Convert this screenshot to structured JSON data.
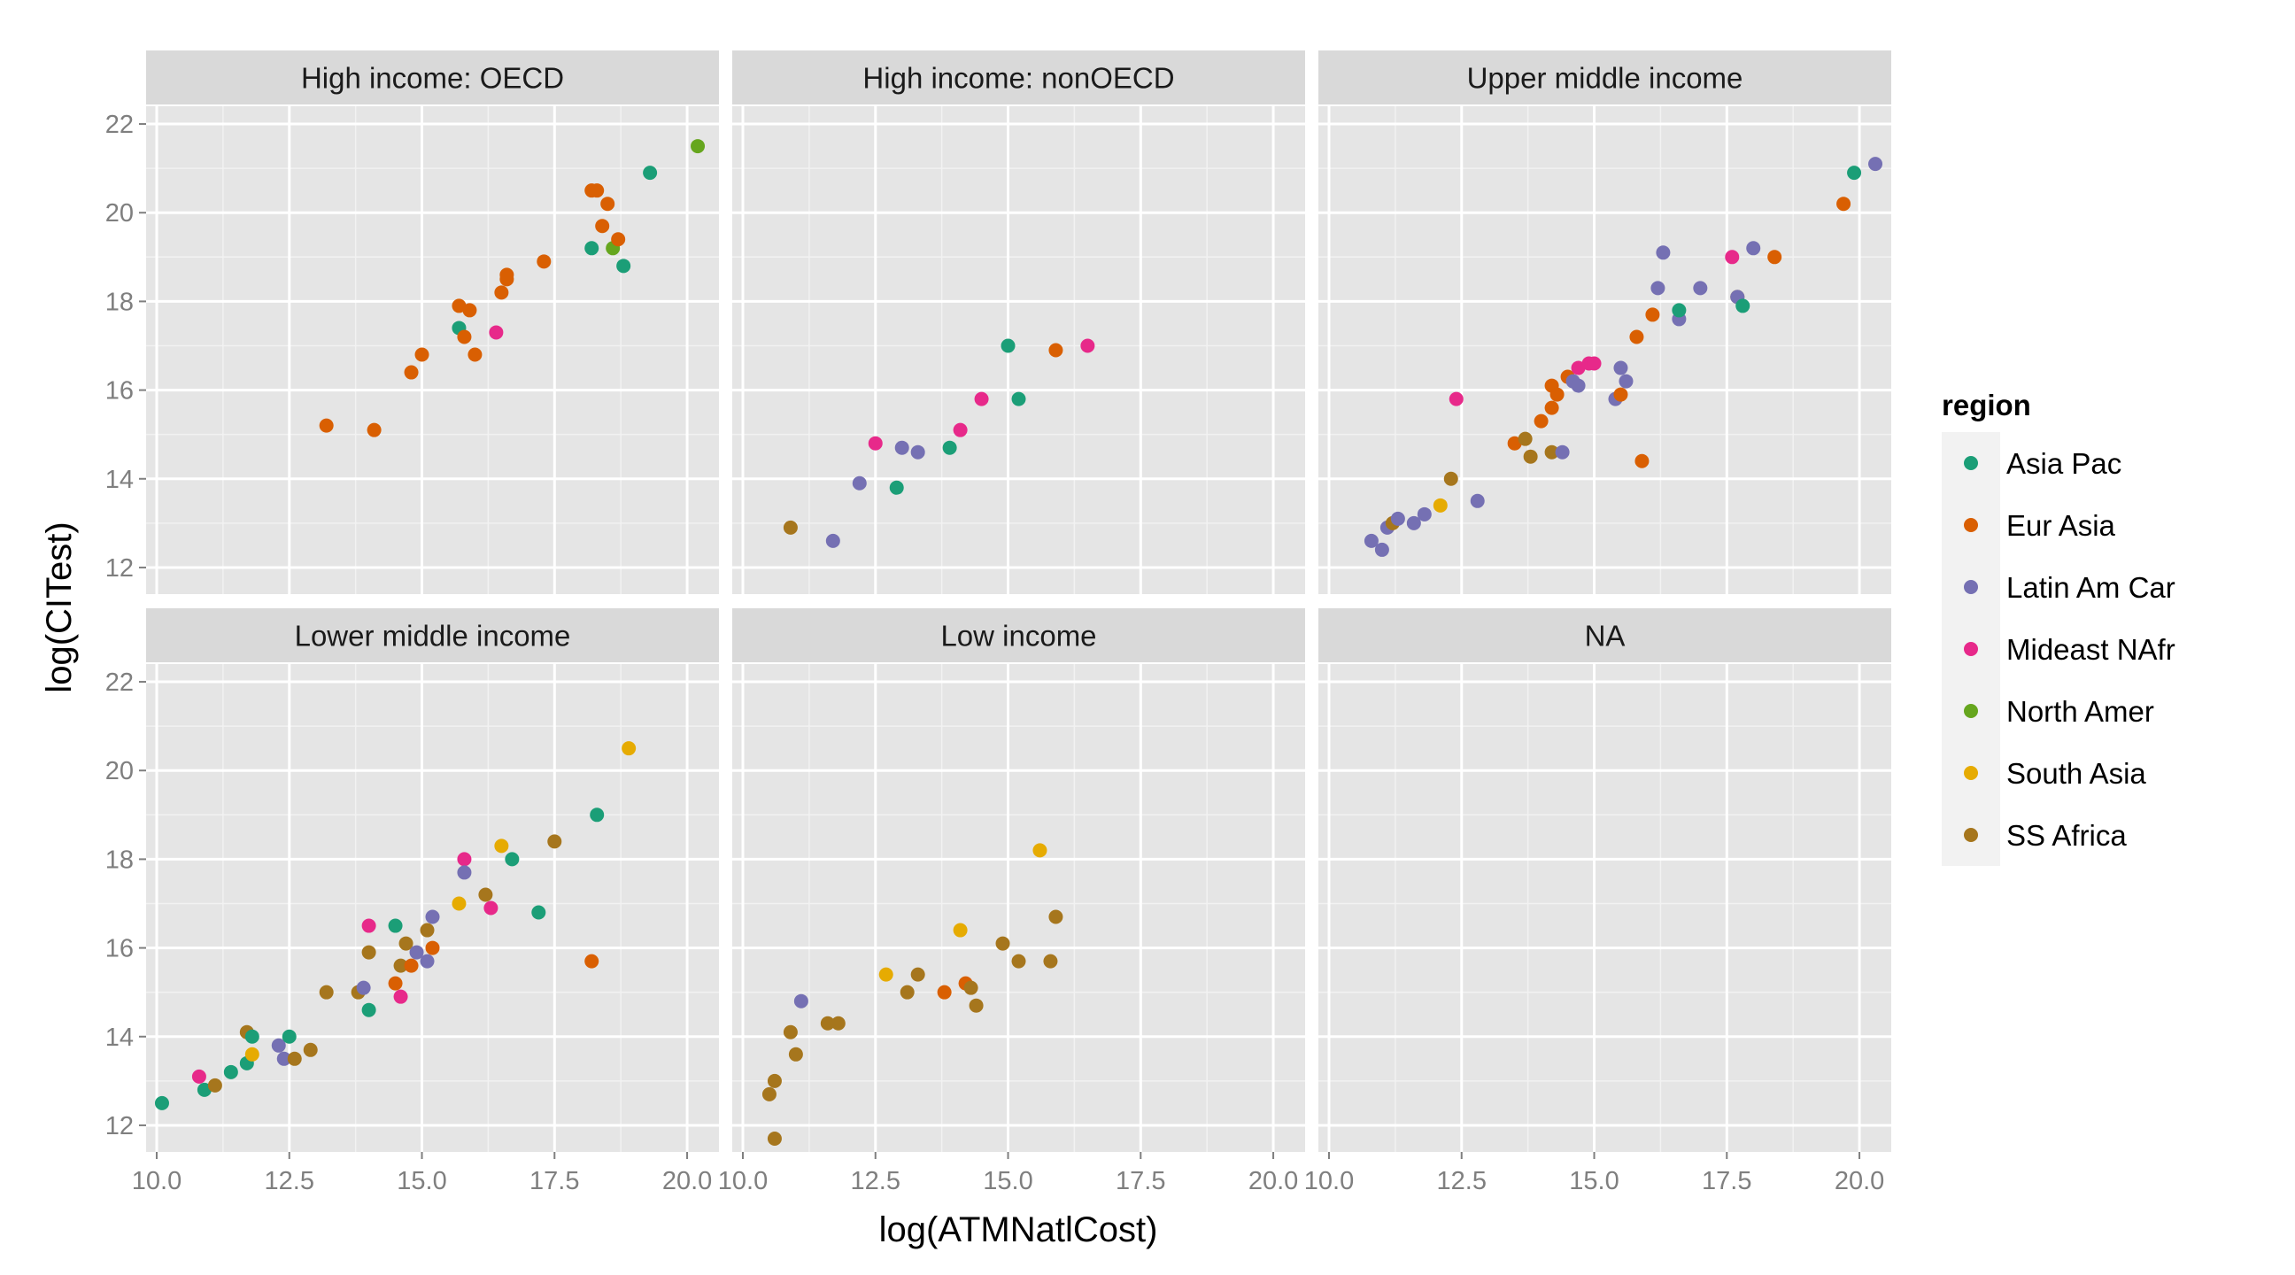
{
  "chart_data": {
    "type": "scatter",
    "xlabel": "log(ATMNatlCost)",
    "ylabel": "log(CITest)",
    "xlim": [
      9.8,
      20.6
    ],
    "ylim": [
      11.4,
      22.4
    ],
    "x_ticks": [
      10,
      12.5,
      15,
      17.5,
      20
    ],
    "x_tick_labels": [
      "10.0",
      "12.5",
      "15.0",
      "17.5",
      "20.0"
    ],
    "y_ticks": [
      12,
      14,
      16,
      18,
      20,
      22
    ],
    "y_tick_labels": [
      "12",
      "14",
      "16",
      "18",
      "20",
      "22"
    ],
    "grid": true,
    "legend": {
      "title": "region",
      "position": "right",
      "entries": [
        {
          "name": "Asia Pac",
          "color": "#1b9e77"
        },
        {
          "name": "Eur Asia",
          "color": "#d95f02"
        },
        {
          "name": "Latin Am Car",
          "color": "#7570b3"
        },
        {
          "name": "Mideast NAfr",
          "color": "#e7298a"
        },
        {
          "name": "North Amer",
          "color": "#66a61e"
        },
        {
          "name": "South Asia",
          "color": "#e6ab02"
        },
        {
          "name": "SS Africa",
          "color": "#a6761d"
        }
      ]
    },
    "panels": [
      {
        "title": "High income: OECD",
        "points": [
          [
            13.2,
            15.2,
            "Eur Asia"
          ],
          [
            14.1,
            15.1,
            "Eur Asia"
          ],
          [
            14.8,
            16.4,
            "Eur Asia"
          ],
          [
            15.0,
            16.8,
            "Eur Asia"
          ],
          [
            15.7,
            17.9,
            "Eur Asia"
          ],
          [
            15.7,
            17.4,
            "Asia Pac"
          ],
          [
            15.8,
            17.2,
            "Eur Asia"
          ],
          [
            15.9,
            17.8,
            "Eur Asia"
          ],
          [
            16.0,
            16.8,
            "Eur Asia"
          ],
          [
            16.4,
            17.3,
            "Mideast NAfr"
          ],
          [
            16.5,
            18.2,
            "Eur Asia"
          ],
          [
            16.6,
            18.5,
            "Eur Asia"
          ],
          [
            16.6,
            18.6,
            "Eur Asia"
          ],
          [
            17.3,
            18.9,
            "Eur Asia"
          ],
          [
            18.2,
            19.2,
            "Asia Pac"
          ],
          [
            18.2,
            20.5,
            "Eur Asia"
          ],
          [
            18.3,
            20.5,
            "Eur Asia"
          ],
          [
            18.4,
            19.7,
            "Eur Asia"
          ],
          [
            18.5,
            20.2,
            "Eur Asia"
          ],
          [
            18.6,
            19.2,
            "North Amer"
          ],
          [
            18.7,
            19.4,
            "Eur Asia"
          ],
          [
            18.8,
            18.8,
            "Asia Pac"
          ],
          [
            19.3,
            20.9,
            "Asia Pac"
          ],
          [
            20.2,
            21.5,
            "North Amer"
          ]
        ]
      },
      {
        "title": "High income: nonOECD",
        "points": [
          [
            10.9,
            12.9,
            "SS Africa"
          ],
          [
            11.7,
            12.6,
            "Latin Am Car"
          ],
          [
            12.2,
            13.9,
            "Latin Am Car"
          ],
          [
            12.5,
            14.8,
            "Mideast NAfr"
          ],
          [
            12.9,
            13.8,
            "Asia Pac"
          ],
          [
            13.0,
            14.7,
            "Latin Am Car"
          ],
          [
            13.3,
            14.6,
            "Latin Am Car"
          ],
          [
            13.9,
            14.7,
            "Asia Pac"
          ],
          [
            14.1,
            15.1,
            "Mideast NAfr"
          ],
          [
            14.5,
            15.8,
            "Mideast NAfr"
          ],
          [
            15.0,
            17.0,
            "Asia Pac"
          ],
          [
            15.2,
            15.8,
            "Asia Pac"
          ],
          [
            15.9,
            16.9,
            "Eur Asia"
          ],
          [
            16.5,
            17.0,
            "Mideast NAfr"
          ]
        ]
      },
      {
        "title": "Upper middle income",
        "points": [
          [
            10.8,
            12.6,
            "Latin Am Car"
          ],
          [
            11.0,
            12.4,
            "Latin Am Car"
          ],
          [
            11.1,
            12.9,
            "Latin Am Car"
          ],
          [
            11.2,
            13.0,
            "SS Africa"
          ],
          [
            11.3,
            13.1,
            "Latin Am Car"
          ],
          [
            11.6,
            13.0,
            "Latin Am Car"
          ],
          [
            11.8,
            13.2,
            "Latin Am Car"
          ],
          [
            12.1,
            13.4,
            "South Asia"
          ],
          [
            12.3,
            14.0,
            "SS Africa"
          ],
          [
            12.4,
            15.8,
            "Mideast NAfr"
          ],
          [
            12.8,
            13.5,
            "Latin Am Car"
          ],
          [
            13.5,
            14.8,
            "Eur Asia"
          ],
          [
            13.7,
            14.9,
            "SS Africa"
          ],
          [
            13.8,
            14.5,
            "SS Africa"
          ],
          [
            14.0,
            15.3,
            "Eur Asia"
          ],
          [
            14.2,
            16.1,
            "Eur Asia"
          ],
          [
            14.2,
            14.6,
            "SS Africa"
          ],
          [
            14.2,
            15.6,
            "Eur Asia"
          ],
          [
            14.3,
            15.9,
            "Eur Asia"
          ],
          [
            14.4,
            14.6,
            "Latin Am Car"
          ],
          [
            14.5,
            16.3,
            "Eur Asia"
          ],
          [
            14.6,
            16.2,
            "Latin Am Car"
          ],
          [
            14.7,
            16.5,
            "Mideast NAfr"
          ],
          [
            14.7,
            16.1,
            "Latin Am Car"
          ],
          [
            14.9,
            16.6,
            "Mideast NAfr"
          ],
          [
            15.0,
            16.6,
            "Mideast NAfr"
          ],
          [
            15.4,
            15.8,
            "Latin Am Car"
          ],
          [
            15.5,
            16.5,
            "Latin Am Car"
          ],
          [
            15.5,
            15.9,
            "Eur Asia"
          ],
          [
            15.6,
            16.2,
            "Latin Am Car"
          ],
          [
            15.8,
            17.2,
            "Eur Asia"
          ],
          [
            15.9,
            14.4,
            "Eur Asia"
          ],
          [
            16.1,
            17.7,
            "Eur Asia"
          ],
          [
            16.2,
            18.3,
            "Latin Am Car"
          ],
          [
            16.3,
            19.1,
            "Latin Am Car"
          ],
          [
            16.6,
            17.6,
            "Latin Am Car"
          ],
          [
            16.6,
            17.8,
            "Asia Pac"
          ],
          [
            17.0,
            18.3,
            "Latin Am Car"
          ],
          [
            17.6,
            19.0,
            "Mideast NAfr"
          ],
          [
            17.7,
            18.1,
            "SS Africa"
          ],
          [
            17.7,
            18.1,
            "Latin Am Car"
          ],
          [
            17.8,
            17.9,
            "Asia Pac"
          ],
          [
            18.0,
            19.2,
            "Latin Am Car"
          ],
          [
            18.4,
            19.0,
            "Eur Asia"
          ],
          [
            19.7,
            20.2,
            "Eur Asia"
          ],
          [
            19.9,
            20.9,
            "Asia Pac"
          ],
          [
            20.3,
            21.1,
            "Latin Am Car"
          ]
        ]
      },
      {
        "title": "Lower middle income",
        "points": [
          [
            10.1,
            12.5,
            "Asia Pac"
          ],
          [
            10.8,
            13.1,
            "Mideast NAfr"
          ],
          [
            10.9,
            12.8,
            "Asia Pac"
          ],
          [
            11.1,
            12.9,
            "SS Africa"
          ],
          [
            11.4,
            13.2,
            "Asia Pac"
          ],
          [
            11.7,
            13.4,
            "Asia Pac"
          ],
          [
            11.7,
            14.1,
            "SS Africa"
          ],
          [
            11.8,
            13.6,
            "South Asia"
          ],
          [
            11.8,
            14.0,
            "Asia Pac"
          ],
          [
            12.3,
            13.8,
            "Latin Am Car"
          ],
          [
            12.4,
            13.5,
            "Latin Am Car"
          ],
          [
            12.5,
            14.0,
            "Asia Pac"
          ],
          [
            12.6,
            13.5,
            "SS Africa"
          ],
          [
            12.9,
            13.7,
            "SS Africa"
          ],
          [
            13.2,
            15.0,
            "SS Africa"
          ],
          [
            13.8,
            15.0,
            "SS Africa"
          ],
          [
            13.9,
            15.1,
            "Latin Am Car"
          ],
          [
            14.0,
            15.9,
            "SS Africa"
          ],
          [
            14.0,
            16.5,
            "Mideast NAfr"
          ],
          [
            14.0,
            14.6,
            "Asia Pac"
          ],
          [
            14.5,
            16.5,
            "Asia Pac"
          ],
          [
            14.5,
            15.2,
            "Eur Asia"
          ],
          [
            14.6,
            15.6,
            "SS Africa"
          ],
          [
            14.6,
            14.9,
            "Mideast NAfr"
          ],
          [
            14.7,
            16.1,
            "SS Africa"
          ],
          [
            14.8,
            15.6,
            "Eur Asia"
          ],
          [
            14.9,
            15.9,
            "Latin Am Car"
          ],
          [
            15.1,
            16.4,
            "SS Africa"
          ],
          [
            15.1,
            15.7,
            "Latin Am Car"
          ],
          [
            15.2,
            16.0,
            "Eur Asia"
          ],
          [
            15.2,
            16.7,
            "Latin Am Car"
          ],
          [
            15.7,
            17.0,
            "South Asia"
          ],
          [
            15.8,
            18.0,
            "Mideast NAfr"
          ],
          [
            15.8,
            17.7,
            "Latin Am Car"
          ],
          [
            16.2,
            17.2,
            "SS Africa"
          ],
          [
            16.3,
            16.9,
            "Mideast NAfr"
          ],
          [
            16.5,
            18.3,
            "South Asia"
          ],
          [
            16.7,
            18.0,
            "Asia Pac"
          ],
          [
            17.2,
            16.8,
            "Asia Pac"
          ],
          [
            17.5,
            18.4,
            "SS Africa"
          ],
          [
            18.2,
            15.7,
            "Eur Asia"
          ],
          [
            18.3,
            19.0,
            "Asia Pac"
          ],
          [
            18.9,
            20.5,
            "South Asia"
          ]
        ]
      },
      {
        "title": "Low income",
        "points": [
          [
            10.5,
            12.7,
            "SS Africa"
          ],
          [
            10.6,
            11.7,
            "SS Africa"
          ],
          [
            10.6,
            13.0,
            "SS Africa"
          ],
          [
            10.9,
            14.1,
            "SS Africa"
          ],
          [
            11.0,
            13.6,
            "SS Africa"
          ],
          [
            11.1,
            14.8,
            "Latin Am Car"
          ],
          [
            11.6,
            14.3,
            "SS Africa"
          ],
          [
            11.8,
            14.3,
            "SS Africa"
          ],
          [
            12.7,
            15.4,
            "South Asia"
          ],
          [
            13.1,
            15.0,
            "SS Africa"
          ],
          [
            13.3,
            15.4,
            "SS Africa"
          ],
          [
            13.8,
            15.0,
            "Eur Asia"
          ],
          [
            14.1,
            16.4,
            "South Asia"
          ],
          [
            14.2,
            15.2,
            "Eur Asia"
          ],
          [
            14.3,
            15.1,
            "SS Africa"
          ],
          [
            14.4,
            14.7,
            "SS Africa"
          ],
          [
            14.9,
            16.1,
            "SS Africa"
          ],
          [
            15.2,
            15.7,
            "SS Africa"
          ],
          [
            15.6,
            18.2,
            "South Asia"
          ],
          [
            15.8,
            15.7,
            "SS Africa"
          ],
          [
            15.9,
            16.7,
            "SS Africa"
          ]
        ]
      },
      {
        "title": "NA",
        "points": []
      }
    ]
  }
}
